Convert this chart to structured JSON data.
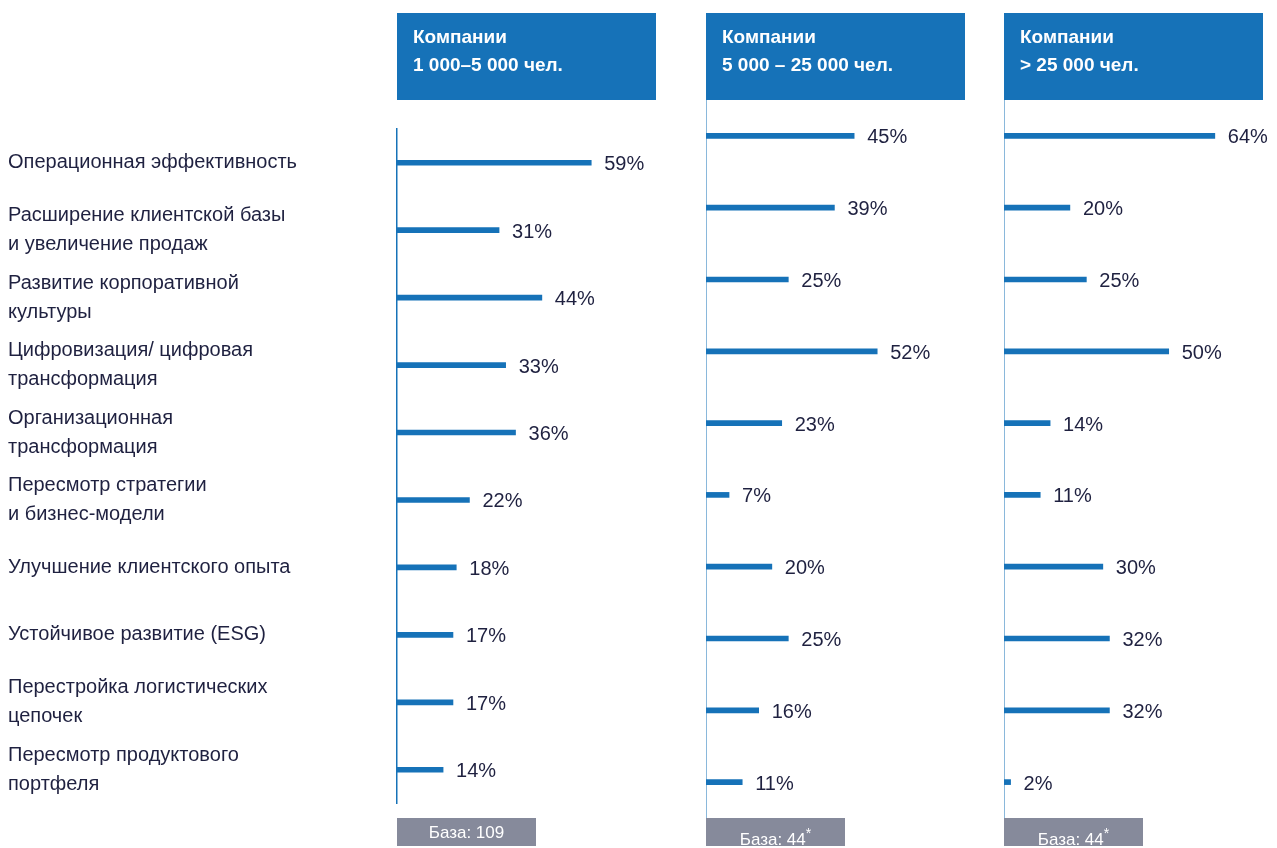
{
  "chart_data": [
    {
      "type": "bar",
      "orientation": "horizontal",
      "title": "Компании\n1 000–5 000 чел.",
      "categories": [
        "Операционная эффективность",
        "Расширение клиентской базы и увеличение продаж",
        "Развитие корпоративной культуры",
        "Цифровизация/ цифровая трансформация",
        "Организационная трансформация",
        "Пересмотр стратегии и бизнес-модели",
        "Улучшение клиентского опыта",
        "Устойчивое развитие (ESG)",
        "Перестройка логистических цепочек",
        "Пересмотр продуктового портфеля"
      ],
      "values": [
        59,
        31,
        44,
        33,
        36,
        22,
        18,
        17,
        17,
        14
      ],
      "value_labels": [
        "59%",
        "31%",
        "44%",
        "33%",
        "36%",
        "22%",
        "18%",
        "17%",
        "17%",
        "14%"
      ],
      "color": "#1672b8",
      "tick_labels": "y",
      "annotations": [
        "База: 109"
      ]
    },
    {
      "type": "bar",
      "orientation": "horizontal",
      "title": "Компании\n5 000 – 25 000 чел.",
      "categories": [
        null,
        null,
        null,
        null,
        null,
        null,
        null,
        null,
        null,
        null
      ],
      "values": [
        45,
        39,
        25,
        52,
        23,
        7,
        20,
        25,
        16,
        11
      ],
      "value_labels": [
        "45%",
        "39%",
        "25%",
        "52%",
        "23%",
        "7%",
        "20%",
        "25%",
        "16%",
        "11%"
      ],
      "color": "#1672b8",
      "tick_labels": false,
      "annotations": [
        "База: 44$^{*}$"
      ]
    },
    {
      "type": "bar",
      "orientation": "horizontal",
      "title": "Компании\n> 25 000 чел.",
      "categories": [
        null,
        null,
        null,
        null,
        null,
        null,
        null,
        null,
        null,
        null
      ],
      "values": [
        64,
        20,
        25,
        50,
        14,
        11,
        30,
        32,
        32,
        2
      ],
      "value_labels": [
        "64%",
        "20%",
        "25%",
        "50%",
        "14%",
        "11%",
        "30%",
        "32%",
        "32%",
        "2%"
      ],
      "color": "#1672b8",
      "tick_labels": false,
      "annotations": [
        "База: 44$^{*}$"
      ]
    }
  ]
}
